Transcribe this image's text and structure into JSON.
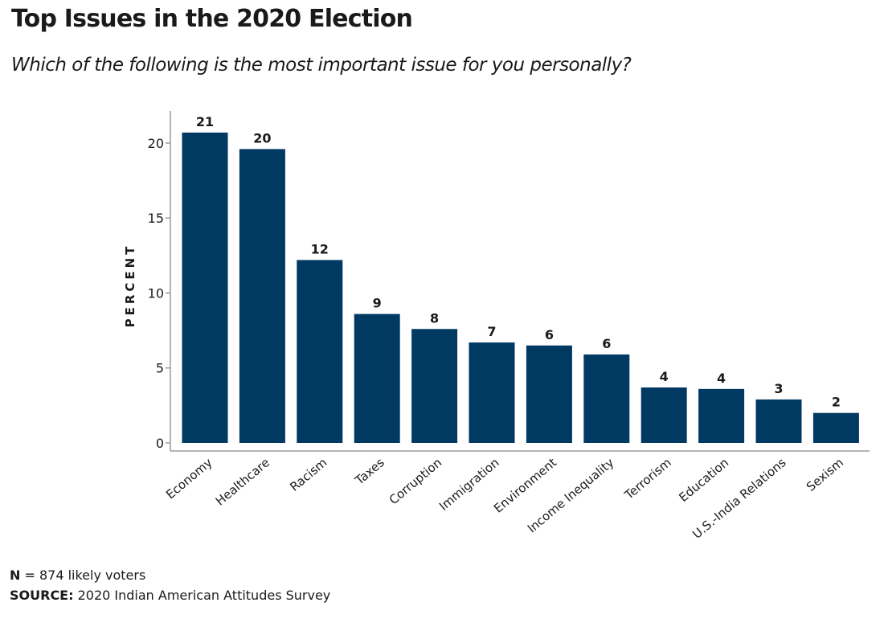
{
  "title": "Top Issues in the 2020 Election",
  "subtitle": "Which of the following is the most important issue for you personally?",
  "footnote": {
    "n_label": "N",
    "n_text": " = 874 likely voters",
    "source_label": "SOURCE:",
    "source_text": " 2020 Indian American Attitudes Survey"
  },
  "colors": {
    "bar": "#003a63",
    "axis": "#9a9a9a",
    "text": "#1a1a1a"
  },
  "chart_data": {
    "type": "bar",
    "ylabel": "PERCENT",
    "xlabel": "",
    "ylim": [
      0,
      21.5
    ],
    "yticks": [
      0,
      5,
      10,
      15,
      20
    ],
    "grid": false,
    "categories": [
      "Economy",
      "Healthcare",
      "Racism",
      "Taxes",
      "Corruption",
      "Immigration",
      "Environment",
      "Income Inequality",
      "Terrorism",
      "Education",
      "U.S.-India Relations",
      "Sexism"
    ],
    "values": [
      20.7,
      19.6,
      12.2,
      8.6,
      7.6,
      6.7,
      6.5,
      5.9,
      3.7,
      3.6,
      2.9,
      2.0
    ],
    "labels": [
      "21",
      "20",
      "12",
      "9",
      "8",
      "7",
      "6",
      "6",
      "4",
      "4",
      "3",
      "2"
    ]
  }
}
